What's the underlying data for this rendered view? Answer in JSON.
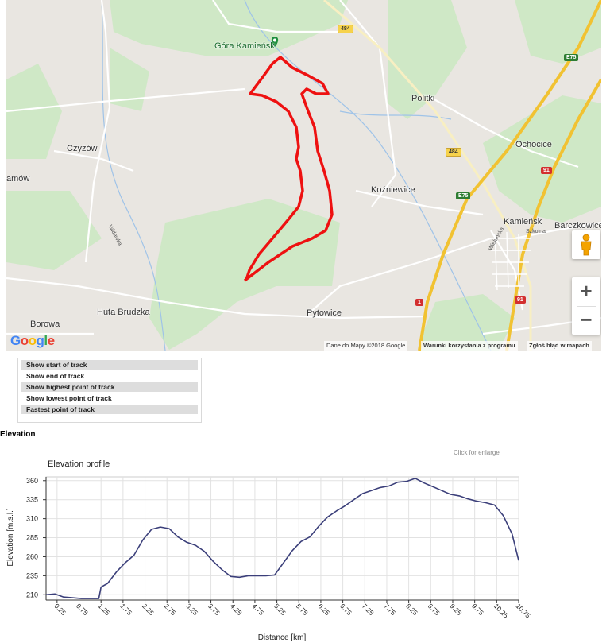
{
  "map": {
    "places": {
      "gora": "Góra Kamieńsk",
      "politki": "Politki",
      "ochocice": "Ochocice",
      "czyzow": "Czyżów",
      "amow": "amów",
      "kozniewice": "Koźniewice",
      "kamiensk": "Kamieńsk",
      "barczkowice": "Barczkowice",
      "huta": "Huta Brudzka",
      "borowa": "Borowa",
      "pytowice": "Pytowice"
    },
    "streets": {
      "widawka": "Widawka",
      "szkolna": "Szkolna",
      "wielunska": "Wieluńska"
    },
    "shields": {
      "r484a": "484",
      "r484b": "484",
      "e75a": "E75",
      "e75b": "E75",
      "r91a": "91",
      "r91b": "91",
      "r1": "1"
    },
    "logo": "Google",
    "attribution": {
      "data": "Dane do Mapy ©2018 Google",
      "terms": "Warunki korzystania z programu",
      "report": "Zgłoś błąd w mapach"
    },
    "controls": {
      "zoom_in": "+",
      "zoom_out": "−"
    },
    "track_color": "#ee1111",
    "park_color": "#c8e6c0"
  },
  "menu": {
    "items": [
      "Show start of track",
      "Show end of track",
      "Show highest point of track",
      "Show lowest point of track",
      "Fastest point of track"
    ]
  },
  "section": {
    "title": "Elevation",
    "enlarge": "Click for enlarge"
  },
  "chart_data": {
    "type": "line",
    "title": "Elevation profile",
    "xlabel": "Distance [km]",
    "ylabel": "Elevation [m.s.l.]",
    "xlim": [
      0,
      10.75
    ],
    "ylim": [
      203,
      365
    ],
    "yticks": [
      210,
      235,
      260,
      285,
      310,
      335,
      360
    ],
    "xticks": [
      "0.25",
      "0.75",
      "1.25",
      "1.75",
      "2.25",
      "2.75",
      "3.25",
      "3.75",
      "4.25",
      "4.75",
      "5.25",
      "5.75",
      "6.25",
      "6.75",
      "7.25",
      "7.75",
      "8.25",
      "8.75",
      "9.25",
      "9.75",
      "10.25",
      "10.75"
    ],
    "grid": true,
    "line_color": "#3b3f7a",
    "series": [
      {
        "x": [
          0,
          0.2,
          0.4,
          0.6,
          0.8,
          1.0,
          1.2,
          1.25,
          1.4,
          1.6,
          1.8,
          2.0,
          2.2,
          2.4,
          2.6,
          2.8,
          3.0,
          3.2,
          3.4,
          3.6,
          3.8,
          4.0,
          4.2,
          4.4,
          4.6,
          4.8,
          5.0,
          5.2,
          5.4,
          5.6,
          5.8,
          6.0,
          6.2,
          6.4,
          6.6,
          6.8,
          7.0,
          7.2,
          7.4,
          7.6,
          7.8,
          8.0,
          8.2,
          8.4,
          8.6,
          8.8,
          9.0,
          9.2,
          9.4,
          9.6,
          9.8,
          10.0,
          10.2,
          10.4,
          10.6,
          10.75
        ],
        "y": [
          210,
          211,
          207,
          206,
          205,
          205,
          205,
          220,
          225,
          240,
          252,
          262,
          282,
          296,
          299,
          297,
          286,
          279,
          275,
          267,
          254,
          243,
          234,
          233,
          235,
          235,
          235,
          236,
          252,
          268,
          280,
          286,
          300,
          312,
          320,
          327,
          335,
          343,
          347,
          351,
          353,
          358,
          359,
          363,
          357,
          352,
          347,
          342,
          340,
          336,
          333,
          331,
          328,
          314,
          290,
          255
        ]
      }
    ]
  }
}
